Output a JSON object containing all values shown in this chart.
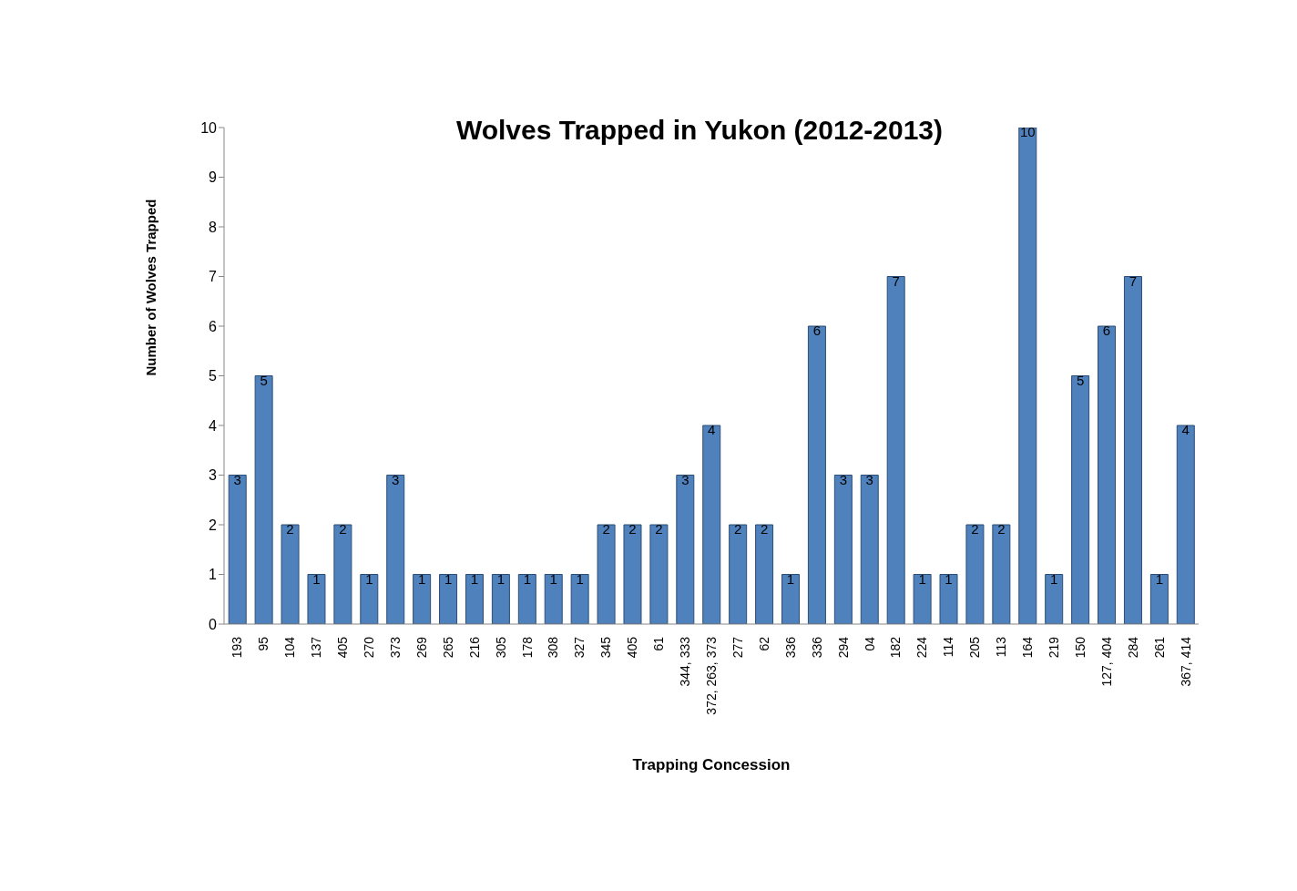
{
  "chart_data": {
    "type": "bar",
    "title": "Wolves Trapped in Yukon (2012-2013)",
    "xlabel": "Trapping Concession",
    "ylabel": "Number of Wolves Trapped",
    "categories": [
      "193",
      "95",
      "104",
      "137",
      "405",
      "270",
      "373",
      "269",
      "265",
      "216",
      "305",
      "178",
      "308",
      "327",
      "345",
      "405",
      "61",
      "344, 333",
      "372, 263, 373",
      "277",
      "62",
      "336",
      "336",
      "294",
      "04",
      "182",
      "224",
      "114",
      "205",
      "113",
      "164",
      "219",
      "150",
      "127, 404",
      "284",
      "261",
      "367, 414"
    ],
    "values": [
      3,
      5,
      2,
      1,
      2,
      1,
      3,
      1,
      1,
      1,
      1,
      1,
      1,
      1,
      2,
      2,
      2,
      3,
      4,
      2,
      2,
      1,
      6,
      3,
      3,
      7,
      1,
      1,
      2,
      2,
      10,
      1,
      5,
      6,
      7,
      1,
      4
    ],
    "color": "#4f81bd",
    "ylim": [
      0,
      10
    ],
    "yticks": [
      0,
      1,
      2,
      3,
      4,
      5,
      6,
      7,
      8,
      9,
      10
    ],
    "data_labels": true
  }
}
